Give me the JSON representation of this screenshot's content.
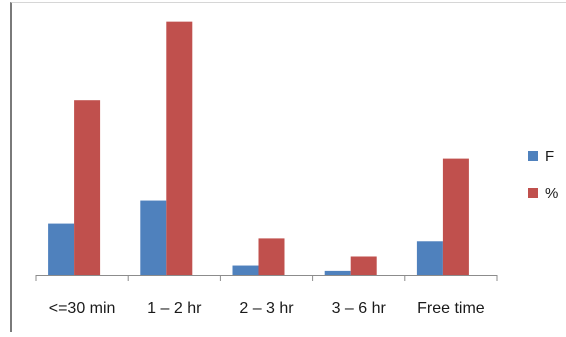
{
  "chart_data": {
    "type": "bar",
    "categories": [
      "<=30 min",
      "1 – 2 hr",
      "2 – 3 hr",
      "3 – 6 hr",
      "Free time"
    ],
    "series": [
      {
        "name": "F",
        "color": "#4F81BD",
        "values": [
          12.5,
          18.1,
          2.3,
          1.0,
          8.2
        ]
      },
      {
        "name": "%",
        "color": "#C0504D",
        "values": [
          42.5,
          61.6,
          8.9,
          4.5,
          28.3
        ]
      }
    ],
    "ylim": [
      0,
      62
    ],
    "grid": false,
    "legend_position": "right",
    "title": "",
    "xlabel": "",
    "ylabel": ""
  }
}
